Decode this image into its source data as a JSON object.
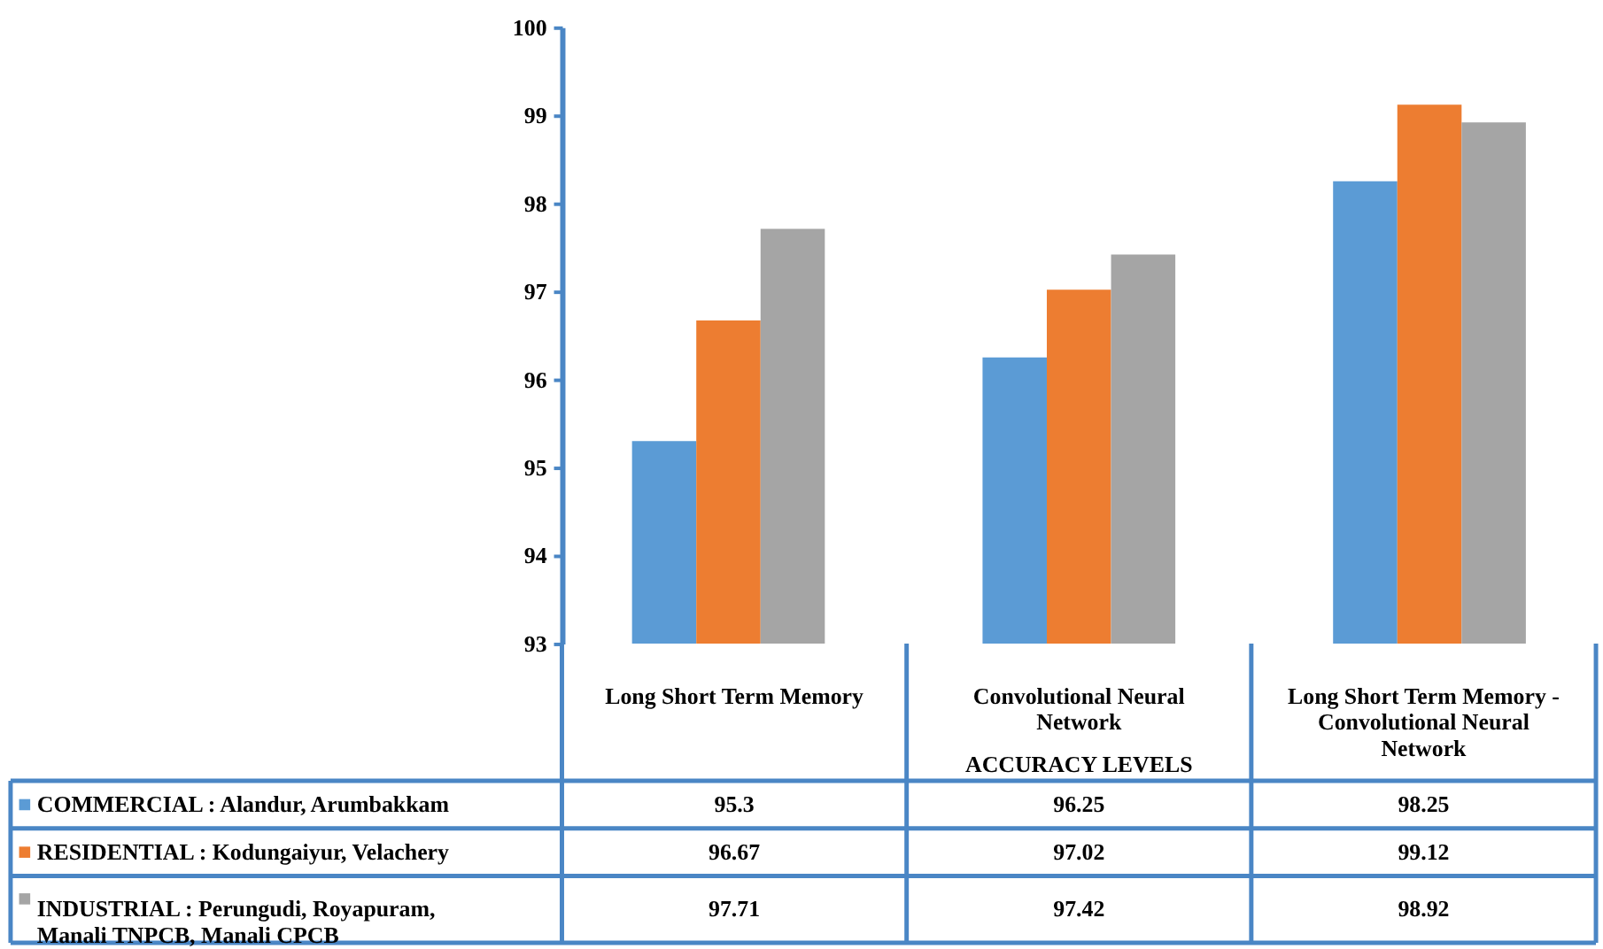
{
  "chart_data": {
    "type": "bar",
    "xlabel": "ACCURACY LEVELS",
    "categories": [
      "Long Short Term Memory",
      "Convolutional Neural Network",
      "Long Short Term Memory - Convolutional Neural Network"
    ],
    "series": [
      {
        "name": "COMMERCIAL : Alandur, Arumbakkam",
        "color": "#5b9bd5",
        "values": [
          95.3,
          96.25,
          98.25
        ]
      },
      {
        "name": "RESIDENTIAL : Kodungaiyur, Velachery",
        "color": "#ed7d31",
        "values": [
          96.67,
          97.02,
          99.12
        ]
      },
      {
        "name": "INDUSTRIAL : Perungudi, Royapuram, Manali TNPCB, Manali CPCB",
        "color": "#a5a5a5",
        "values": [
          97.71,
          97.42,
          98.92
        ]
      }
    ],
    "ylim": [
      93,
      100
    ],
    "yticks": [
      93,
      94,
      95,
      96,
      97,
      98,
      99,
      100
    ],
    "grid": false,
    "legend": "bottom",
    "data_labels": true
  }
}
